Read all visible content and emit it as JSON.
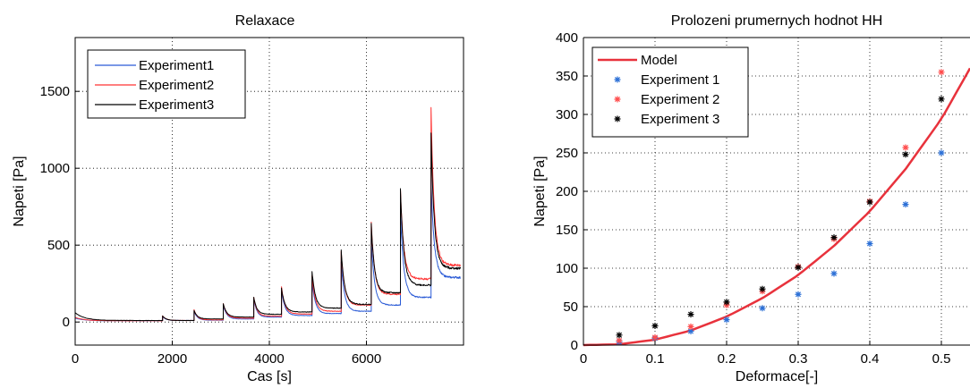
{
  "chart_data": [
    {
      "type": "line",
      "title": "Relaxace",
      "xlabel": "Cas [s]",
      "ylabel": "Napeti [Pa]",
      "xlim": [
        0,
        8000
      ],
      "ylim": [
        -150,
        1850
      ],
      "xticks": [
        0,
        2000,
        4000,
        6000
      ],
      "yticks": [
        0,
        500,
        1000,
        1500
      ],
      "grid": true,
      "legend_position": "top-left",
      "step_times": [
        1800,
        2450,
        3050,
        3680,
        4250,
        4880,
        5480,
        6100,
        6700,
        7330
      ],
      "series": [
        {
          "name": "Experiment1",
          "color": "#2b5bd6",
          "peaks": [
            25,
            35,
            70,
            110,
            150,
            210,
            270,
            390,
            540,
            710,
            920
          ],
          "plateaus": [
            8,
            10,
            12,
            20,
            32,
            42,
            55,
            70,
            110,
            160,
            290
          ]
        },
        {
          "name": "Experiment2",
          "color": "#ff3333",
          "peaks": [
            30,
            40,
            80,
            120,
            160,
            230,
            300,
            460,
            650,
            860,
            1400
          ],
          "plateaus": [
            8,
            10,
            14,
            25,
            38,
            52,
            70,
            110,
            180,
            280,
            370
          ]
        },
        {
          "name": "Experiment3",
          "color": "#000000",
          "peaks": [
            60,
            40,
            75,
            120,
            160,
            220,
            330,
            470,
            640,
            870,
            1230
          ],
          "plateaus": [
            10,
            10,
            20,
            32,
            50,
            65,
            90,
            115,
            190,
            240,
            350
          ]
        }
      ]
    },
    {
      "type": "scatter",
      "title": "Prolozeni prumernych hodnot HH",
      "xlabel": "Deformace[-]",
      "ylabel": "Napeti [Pa]",
      "xlim": [
        0,
        0.54
      ],
      "ylim": [
        0,
        400
      ],
      "xticks": [
        0,
        0.1,
        0.2,
        0.3,
        0.4,
        0.5
      ],
      "yticks": [
        0,
        50,
        100,
        150,
        200,
        250,
        300,
        350,
        400
      ],
      "grid": true,
      "legend_position": "top-left",
      "model": {
        "name": "Model",
        "color": "#e8323c",
        "x": [
          0,
          0.05,
          0.1,
          0.15,
          0.2,
          0.25,
          0.3,
          0.35,
          0.4,
          0.45,
          0.5,
          0.54
        ],
        "y": [
          0,
          1,
          7,
          19,
          37,
          61,
          91,
          129,
          174,
          229,
          294,
          360
        ]
      },
      "series": [
        {
          "name": "Experiment 1",
          "color": "#2b6fd6",
          "x": [
            0.05,
            0.1,
            0.15,
            0.2,
            0.25,
            0.3,
            0.35,
            0.4,
            0.45,
            0.5
          ],
          "y": [
            4,
            9,
            18,
            33,
            48,
            66,
            93,
            132,
            183,
            250
          ]
        },
        {
          "name": "Experiment 2",
          "color": "#ff4c4c",
          "x": [
            0.05,
            0.1,
            0.15,
            0.2,
            0.25,
            0.3,
            0.35,
            0.4,
            0.45,
            0.5
          ],
          "y": [
            6,
            10,
            24,
            52,
            70,
            102,
            138,
            187,
            257,
            355
          ]
        },
        {
          "name": "Experiment 3",
          "color": "#000000",
          "x": [
            0.05,
            0.1,
            0.15,
            0.2,
            0.25,
            0.3,
            0.35,
            0.4,
            0.45,
            0.5
          ],
          "y": [
            13,
            25,
            40,
            56,
            73,
            101,
            140,
            186,
            248,
            320
          ]
        }
      ]
    }
  ]
}
